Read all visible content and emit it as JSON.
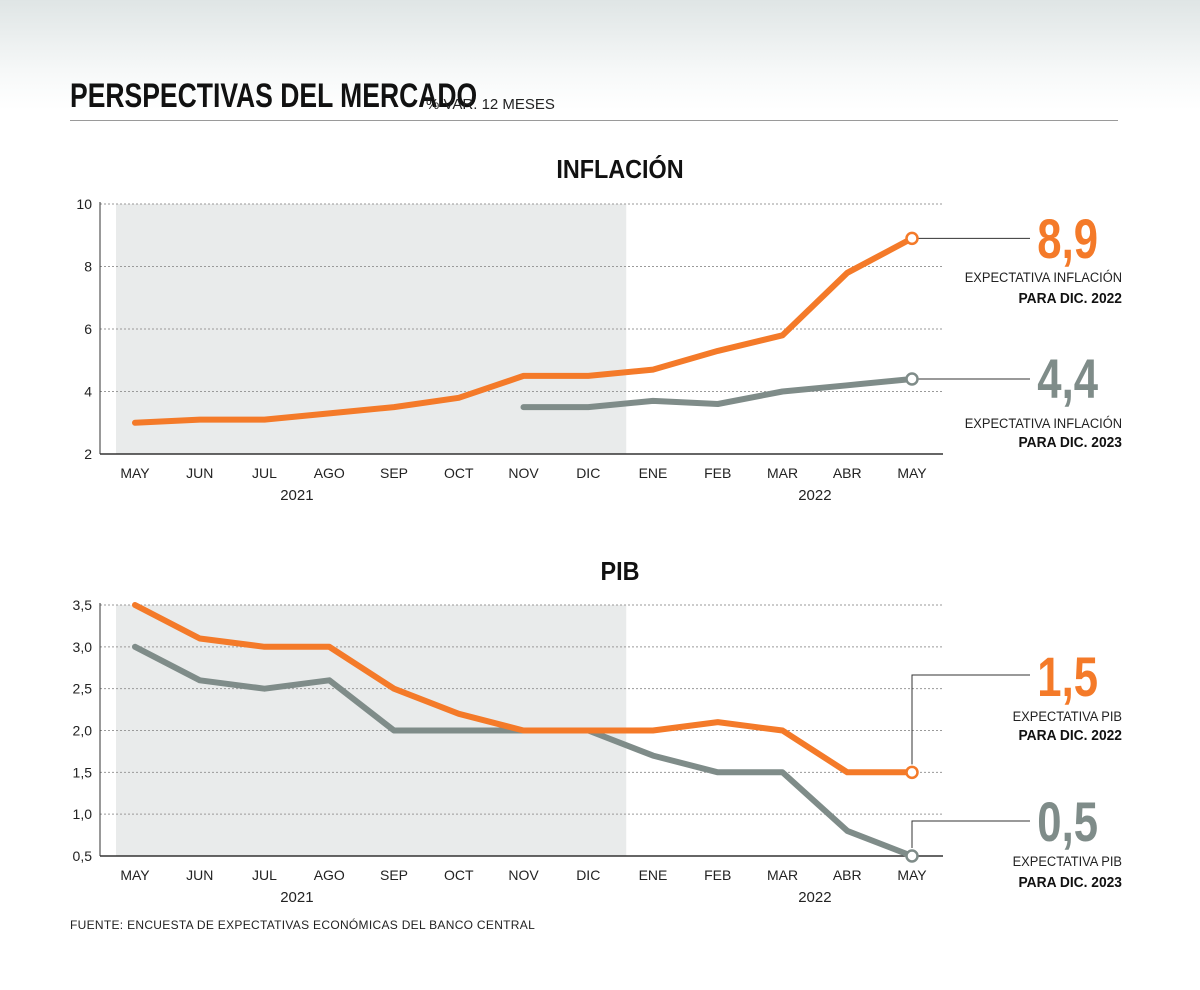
{
  "title": "PERSPECTIVAS DEL MERCADO",
  "subtitle": "% VAR. 12 MESES",
  "source": "FUENTE: ENCUESTA DE EXPECTATIVAS ECONÓMICAS DEL BANCO CENTRAL",
  "colors": {
    "orange": "#f47a29",
    "gray": "#7f8c89",
    "shade": "#e9ebeb"
  },
  "chart_data": [
    {
      "type": "line",
      "title": "INFLACIÓN",
      "categories": [
        "MAY",
        "JUN",
        "JUL",
        "AGO",
        "SEP",
        "OCT",
        "NOV",
        "DIC",
        "ENE",
        "FEB",
        "MAR",
        "ABR",
        "MAY"
      ],
      "year_labels": [
        {
          "label": "2021",
          "at_index": 2.5
        },
        {
          "label": "2022",
          "at_index": 10.5
        }
      ],
      "shaded_range": [
        0,
        7
      ],
      "ylim": [
        2,
        10
      ],
      "yticks": [
        "2",
        "4",
        "6",
        "8",
        "10"
      ],
      "ytick_values": [
        2,
        4,
        6,
        8,
        10
      ],
      "grid": true,
      "series": [
        {
          "color": "orange",
          "values": [
            3.0,
            3.1,
            3.1,
            3.3,
            3.5,
            3.8,
            4.5,
            4.5,
            4.7,
            5.3,
            5.8,
            7.8,
            8.9
          ]
        },
        {
          "color": "gray",
          "values": [
            null,
            null,
            null,
            null,
            null,
            null,
            3.5,
            3.5,
            3.7,
            3.6,
            4.0,
            4.2,
            4.4
          ]
        }
      ],
      "annotations": [
        {
          "series": 0,
          "value": "8,9",
          "line1": "EXPECTATIVA INFLACIÓN",
          "line2": "PARA DIC. 2022"
        },
        {
          "series": 1,
          "value": "4,4",
          "line1": "EXPECTATIVA INFLACIÓN",
          "line2": "PARA DIC. 2023"
        }
      ]
    },
    {
      "type": "line",
      "title": "PIB",
      "categories": [
        "MAY",
        "JUN",
        "JUL",
        "AGO",
        "SEP",
        "OCT",
        "NOV",
        "DIC",
        "ENE",
        "FEB",
        "MAR",
        "ABR",
        "MAY"
      ],
      "year_labels": [
        {
          "label": "2021",
          "at_index": 2.5
        },
        {
          "label": "2022",
          "at_index": 10.5
        }
      ],
      "shaded_range": [
        0,
        7
      ],
      "ylim": [
        0.5,
        3.5
      ],
      "yticks": [
        "0,5",
        "1,0",
        "1,5",
        "2,0",
        "2,5",
        "3,0",
        "3,5"
      ],
      "ytick_values": [
        0.5,
        1.0,
        1.5,
        2.0,
        2.5,
        3.0,
        3.5
      ],
      "grid": true,
      "series": [
        {
          "color": "orange",
          "values": [
            3.5,
            3.1,
            3.0,
            3.0,
            2.5,
            2.2,
            2.0,
            2.0,
            2.0,
            2.1,
            2.0,
            1.5,
            1.5
          ]
        },
        {
          "color": "gray",
          "values": [
            3.0,
            2.6,
            2.5,
            2.6,
            2.0,
            2.0,
            2.0,
            2.0,
            1.7,
            1.5,
            1.5,
            0.8,
            0.5
          ]
        }
      ],
      "annotations": [
        {
          "series": 0,
          "value": "1,5",
          "line1": "EXPECTATIVA PIB",
          "line2": "PARA DIC. 2022"
        },
        {
          "series": 1,
          "value": "0,5",
          "line1": "EXPECTATIVA PIB",
          "line2": "PARA DIC. 2023"
        }
      ]
    }
  ]
}
